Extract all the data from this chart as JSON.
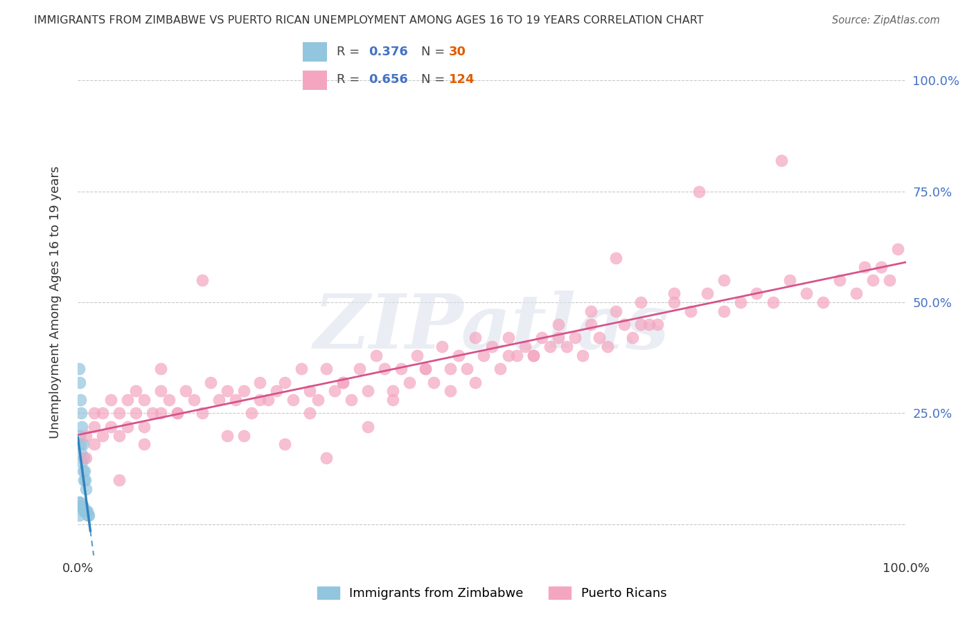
{
  "title": "IMMIGRANTS FROM ZIMBABWE VS PUERTO RICAN UNEMPLOYMENT AMONG AGES 16 TO 19 YEARS CORRELATION CHART",
  "source": "Source: ZipAtlas.com",
  "ylabel": "Unemployment Among Ages 16 to 19 years",
  "xlim": [
    0.0,
    1.0
  ],
  "ylim": [
    -0.07,
    1.07
  ],
  "legend_blue_r": "0.376",
  "legend_blue_n": "30",
  "legend_pink_r": "0.656",
  "legend_pink_n": "124",
  "legend_label_blue": "Immigrants from Zimbabwe",
  "legend_label_pink": "Puerto Ricans",
  "blue_color": "#92c5de",
  "pink_color": "#f4a6c0",
  "blue_line_color": "#3182bd",
  "pink_line_color": "#d6538a",
  "r_color": "#4472c4",
  "n_color": "#e05c00",
  "watermark": "ZIPatlas",
  "background_color": "#ffffff",
  "grid_color": "#c8c8c8",
  "blue_x": [
    0.001,
    0.002,
    0.003,
    0.004,
    0.005,
    0.006,
    0.007,
    0.008,
    0.009,
    0.01,
    0.002,
    0.003,
    0.004,
    0.005,
    0.006,
    0.007,
    0.001,
    0.002,
    0.003,
    0.004,
    0.005,
    0.006,
    0.007,
    0.008,
    0.009,
    0.01,
    0.011,
    0.012,
    0.013,
    0.001
  ],
  "blue_y": [
    0.35,
    0.32,
    0.28,
    0.25,
    0.22,
    0.18,
    0.15,
    0.12,
    0.1,
    0.08,
    0.2,
    0.18,
    0.16,
    0.14,
    0.12,
    0.1,
    0.05,
    0.05,
    0.04,
    0.04,
    0.04,
    0.04,
    0.03,
    0.03,
    0.03,
    0.03,
    0.03,
    0.02,
    0.02,
    0.02
  ],
  "pink_x": [
    0.01,
    0.01,
    0.02,
    0.02,
    0.02,
    0.03,
    0.03,
    0.04,
    0.04,
    0.05,
    0.05,
    0.06,
    0.06,
    0.07,
    0.07,
    0.08,
    0.08,
    0.09,
    0.1,
    0.1,
    0.11,
    0.12,
    0.13,
    0.14,
    0.15,
    0.16,
    0.17,
    0.18,
    0.19,
    0.2,
    0.21,
    0.22,
    0.23,
    0.24,
    0.25,
    0.26,
    0.27,
    0.28,
    0.29,
    0.3,
    0.31,
    0.32,
    0.33,
    0.34,
    0.35,
    0.36,
    0.37,
    0.38,
    0.39,
    0.4,
    0.41,
    0.42,
    0.43,
    0.44,
    0.45,
    0.46,
    0.47,
    0.48,
    0.49,
    0.5,
    0.51,
    0.52,
    0.53,
    0.54,
    0.55,
    0.56,
    0.57,
    0.58,
    0.59,
    0.6,
    0.61,
    0.62,
    0.63,
    0.64,
    0.65,
    0.66,
    0.67,
    0.68,
    0.69,
    0.7,
    0.72,
    0.74,
    0.76,
    0.78,
    0.8,
    0.82,
    0.84,
    0.86,
    0.88,
    0.9,
    0.92,
    0.94,
    0.96,
    0.97,
    0.98,
    0.99,
    0.1,
    0.2,
    0.3,
    0.15,
    0.25,
    0.35,
    0.45,
    0.55,
    0.65,
    0.75,
    0.85,
    0.95,
    0.05,
    0.08,
    0.12,
    0.18,
    0.22,
    0.28,
    0.32,
    0.38,
    0.42,
    0.48,
    0.52,
    0.58,
    0.62,
    0.68,
    0.72,
    0.78
  ],
  "pink_y": [
    0.15,
    0.2,
    0.18,
    0.22,
    0.25,
    0.2,
    0.25,
    0.22,
    0.28,
    0.2,
    0.25,
    0.22,
    0.28,
    0.25,
    0.3,
    0.22,
    0.28,
    0.25,
    0.25,
    0.3,
    0.28,
    0.25,
    0.3,
    0.28,
    0.25,
    0.32,
    0.28,
    0.3,
    0.28,
    0.3,
    0.25,
    0.32,
    0.28,
    0.3,
    0.32,
    0.28,
    0.35,
    0.3,
    0.28,
    0.35,
    0.3,
    0.32,
    0.28,
    0.35,
    0.3,
    0.38,
    0.35,
    0.3,
    0.35,
    0.32,
    0.38,
    0.35,
    0.32,
    0.4,
    0.35,
    0.38,
    0.35,
    0.42,
    0.38,
    0.4,
    0.35,
    0.42,
    0.38,
    0.4,
    0.38,
    0.42,
    0.4,
    0.45,
    0.4,
    0.42,
    0.38,
    0.45,
    0.42,
    0.4,
    0.48,
    0.45,
    0.42,
    0.5,
    0.45,
    0.45,
    0.5,
    0.48,
    0.52,
    0.48,
    0.5,
    0.52,
    0.5,
    0.55,
    0.52,
    0.5,
    0.55,
    0.52,
    0.55,
    0.58,
    0.55,
    0.62,
    0.35,
    0.2,
    0.15,
    0.55,
    0.18,
    0.22,
    0.3,
    0.38,
    0.6,
    0.75,
    0.82,
    0.58,
    0.1,
    0.18,
    0.25,
    0.2,
    0.28,
    0.25,
    0.32,
    0.28,
    0.35,
    0.32,
    0.38,
    0.42,
    0.48,
    0.45,
    0.52,
    0.55
  ]
}
